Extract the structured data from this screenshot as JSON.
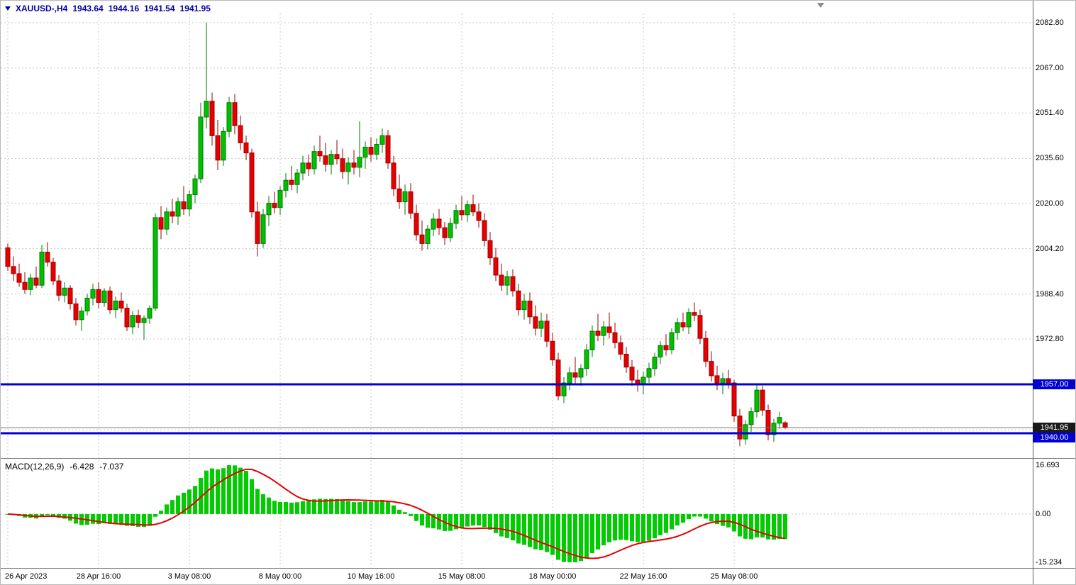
{
  "title": {
    "symbol_period": "XAUUSD-,H4",
    "open": "1943.64",
    "high": "1944.16",
    "low": "1941.54",
    "close": "1941.95"
  },
  "indicator": {
    "name": "MACD(12,26,9)",
    "value_main": "-6.428",
    "value_signal": "-7.037",
    "scale_max": "16.693",
    "scale_zero": "0.00",
    "scale_min": "-15.234"
  },
  "colors": {
    "bull": "#00c000",
    "bull_border": "#007a00",
    "bear": "#e80000",
    "bear_border": "#9c0000",
    "grid": "#c8c8c8",
    "level_line": "#0000d2",
    "bid_line": "#777777",
    "macd_hist": "#00cc00",
    "macd_signal": "#e60000",
    "badge_level_bg": "#0000d2",
    "badge_bid_bg": "#1a1a1a"
  },
  "chart_data": [
    {
      "type": "candlestick",
      "title": "XAUUSD-,H4",
      "symbol": "XAUUSD-",
      "timeframe": "H4",
      "last_ohlc": {
        "open": 1943.64,
        "high": 1944.16,
        "low": 1941.54,
        "close": 1941.95
      },
      "y_axis": {
        "side": "right",
        "grid": [
          {
            "price": 2082.8,
            "label": "2082.80"
          },
          {
            "price": 2067.0,
            "label": "2067.00"
          },
          {
            "price": 2051.4,
            "label": "2051.40"
          },
          {
            "price": 2035.6,
            "label": "2035.60"
          },
          {
            "price": 2020.0,
            "label": "2020.00"
          },
          {
            "price": 2004.2,
            "label": "2004.20"
          },
          {
            "price": 1988.4,
            "label": "1988.40"
          },
          {
            "price": 1972.8,
            "label": "1972.80"
          },
          {
            "price": 1957.0
          },
          {
            "price": 1941.2
          }
        ],
        "badges": [
          {
            "price": 1957.0,
            "label": "1957.00",
            "type": "level",
            "name": "level-1957-badge"
          },
          {
            "price": 1941.95,
            "label": "1941.95",
            "type": "bid",
            "name": "bid-price-badge"
          },
          {
            "price": 1940.0,
            "label": "1940.00",
            "type": "level",
            "name": "level-1940-badge"
          }
        ]
      },
      "x_axis": {
        "ticks": [
          {
            "index": 0,
            "label": "26 Apr 2023"
          },
          {
            "index": 16,
            "label": "28 Apr 16:00"
          },
          {
            "index": 32,
            "label": "3 May 08:00"
          },
          {
            "index": 48,
            "label": "8 May 00:00"
          },
          {
            "index": 64,
            "label": "10 May 16:00"
          },
          {
            "index": 80,
            "label": "15 May 08:00"
          },
          {
            "index": 96,
            "label": "18 May 00:00"
          },
          {
            "index": 112,
            "label": "22 May 16:00"
          },
          {
            "index": 128,
            "label": "25 May 08:00"
          }
        ]
      },
      "horizontal_lines": [
        {
          "price": 1957.0,
          "role": "level",
          "width": 3
        },
        {
          "price": 1940.0,
          "role": "level",
          "width": 3
        },
        {
          "price": 1941.95,
          "role": "bid",
          "width": 1
        }
      ],
      "candles": [
        [
          2004.5,
          2006.0,
          1996.5,
          1998.0
        ],
        [
          1998.0,
          2001.5,
          1993.0,
          1995.5
        ],
        [
          1995.5,
          1999.0,
          1991.0,
          1992.5
        ],
        [
          1992.5,
          1996.0,
          1988.5,
          1990.0
        ],
        [
          1990.0,
          1995.5,
          1988.0,
          1994.0
        ],
        [
          1994.0,
          1998.0,
          1990.5,
          1991.5
        ],
        [
          1991.5,
          2005.5,
          1990.5,
          2003.0
        ],
        [
          2003.0,
          2006.5,
          1998.0,
          1999.5
        ],
        [
          1999.5,
          2001.0,
          1991.5,
          1993.0
        ],
        [
          1993.0,
          1995.0,
          1986.0,
          1988.0
        ],
        [
          1988.0,
          1992.5,
          1985.5,
          1990.5
        ],
        [
          1990.5,
          1991.5,
          1983.0,
          1985.0
        ],
        [
          1985.0,
          1987.0,
          1977.5,
          1979.5
        ],
        [
          1979.5,
          1984.0,
          1975.5,
          1982.5
        ],
        [
          1982.5,
          1988.5,
          1981.0,
          1987.0
        ],
        [
          1987.0,
          1992.0,
          1984.5,
          1990.0
        ],
        [
          1990.0,
          1992.5,
          1983.5,
          1985.5
        ],
        [
          1985.5,
          1990.5,
          1984.0,
          1989.5
        ],
        [
          1989.5,
          1991.0,
          1981.5,
          1983.0
        ],
        [
          1983.0,
          1987.5,
          1980.0,
          1986.0
        ],
        [
          1986.0,
          1989.0,
          1982.0,
          1983.5
        ],
        [
          1983.5,
          1985.0,
          1975.5,
          1977.0
        ],
        [
          1977.0,
          1982.5,
          1974.5,
          1981.0
        ],
        [
          1981.0,
          1983.0,
          1976.5,
          1978.5
        ],
        [
          1978.5,
          1981.0,
          1972.5,
          1980.0
        ],
        [
          1980.0,
          1984.5,
          1978.0,
          1983.5
        ],
        [
          1983.5,
          2016.5,
          1982.5,
          2015.0
        ],
        [
          2015.0,
          2019.0,
          2007.5,
          2011.0
        ],
        [
          2011.0,
          2018.5,
          2009.0,
          2017.0
        ],
        [
          2017.0,
          2021.5,
          2013.0,
          2015.5
        ],
        [
          2015.5,
          2022.0,
          2012.5,
          2020.5
        ],
        [
          2020.5,
          2026.0,
          2016.0,
          2018.0
        ],
        [
          2018.0,
          2024.5,
          2015.5,
          2023.0
        ],
        [
          2023.0,
          2030.0,
          2020.0,
          2028.5
        ],
        [
          2028.5,
          2055.0,
          2027.0,
          2050.0
        ],
        [
          2050.0,
          2082.8,
          2046.0,
          2055.5
        ],
        [
          2055.5,
          2058.5,
          2040.0,
          2043.5
        ],
        [
          2043.5,
          2049.0,
          2031.5,
          2035.0
        ],
        [
          2035.0,
          2046.5,
          2033.0,
          2045.0
        ],
        [
          2045.0,
          2057.0,
          2043.0,
          2055.0
        ],
        [
          2055.0,
          2058.0,
          2044.0,
          2047.0
        ],
        [
          2047.0,
          2050.5,
          2038.5,
          2041.0
        ],
        [
          2041.0,
          2043.5,
          2035.0,
          2037.5
        ],
        [
          2037.5,
          2039.0,
          2015.0,
          2017.0
        ],
        [
          2017.0,
          2020.5,
          2001.5,
          2006.0
        ],
        [
          2006.0,
          2018.0,
          2004.5,
          2016.0
        ],
        [
          2016.0,
          2022.5,
          2012.0,
          2020.0
        ],
        [
          2020.0,
          2024.0,
          2016.5,
          2018.5
        ],
        [
          2018.5,
          2026.0,
          2016.0,
          2024.5
        ],
        [
          2024.5,
          2030.5,
          2022.0,
          2028.0
        ],
        [
          2028.0,
          2033.0,
          2024.5,
          2026.5
        ],
        [
          2026.5,
          2032.0,
          2023.5,
          2030.5
        ],
        [
          2030.5,
          2036.5,
          2028.0,
          2034.0
        ],
        [
          2034.0,
          2037.0,
          2029.5,
          2032.0
        ],
        [
          2032.0,
          2040.0,
          2030.0,
          2038.0
        ],
        [
          2038.0,
          2043.5,
          2034.5,
          2036.5
        ],
        [
          2036.5,
          2041.0,
          2031.0,
          2033.5
        ],
        [
          2033.5,
          2038.5,
          2030.0,
          2037.0
        ],
        [
          2037.0,
          2042.0,
          2033.5,
          2035.5
        ],
        [
          2035.5,
          2039.0,
          2028.5,
          2031.0
        ],
        [
          2031.0,
          2036.0,
          2026.5,
          2034.0
        ],
        [
          2034.0,
          2038.5,
          2030.0,
          2032.5
        ],
        [
          2032.5,
          2048.5,
          2029.0,
          2036.0
        ],
        [
          2036.0,
          2041.5,
          2032.0,
          2039.5
        ],
        [
          2039.5,
          2043.0,
          2034.5,
          2037.0
        ],
        [
          2037.0,
          2042.5,
          2035.0,
          2040.5
        ],
        [
          2040.5,
          2046.0,
          2037.5,
          2043.5
        ],
        [
          2043.5,
          2045.5,
          2032.0,
          2034.0
        ],
        [
          2034.0,
          2036.5,
          2022.5,
          2025.0
        ],
        [
          2025.0,
          2030.0,
          2018.0,
          2020.5
        ],
        [
          2020.5,
          2026.5,
          2016.0,
          2024.0
        ],
        [
          2024.0,
          2027.0,
          2014.5,
          2016.5
        ],
        [
          2016.5,
          2019.5,
          2007.0,
          2009.0
        ],
        [
          2009.0,
          2014.0,
          2003.5,
          2006.0
        ],
        [
          2006.0,
          2012.5,
          2004.0,
          2011.0
        ],
        [
          2011.0,
          2016.5,
          2008.5,
          2014.5
        ],
        [
          2014.5,
          2018.0,
          2009.0,
          2011.5
        ],
        [
          2011.5,
          2013.5,
          2005.5,
          2008.0
        ],
        [
          2008.0,
          2015.0,
          2006.5,
          2013.0
        ],
        [
          2013.0,
          2019.5,
          2011.0,
          2017.5
        ],
        [
          2017.5,
          2022.5,
          2014.0,
          2016.0
        ],
        [
          2016.0,
          2021.0,
          2013.5,
          2019.5
        ],
        [
          2019.5,
          2023.0,
          2015.5,
          2017.0
        ],
        [
          2017.0,
          2020.0,
          2011.5,
          2014.0
        ],
        [
          2014.0,
          2016.5,
          2005.0,
          2007.0
        ],
        [
          2007.0,
          2010.0,
          1998.5,
          2001.0
        ],
        [
          2001.0,
          2004.5,
          1993.0,
          1995.0
        ],
        [
          1995.0,
          1999.0,
          1989.5,
          1991.5
        ],
        [
          1991.5,
          1996.5,
          1988.0,
          1994.5
        ],
        [
          1994.5,
          1997.0,
          1987.5,
          1989.5
        ],
        [
          1989.5,
          1992.0,
          1981.0,
          1983.0
        ],
        [
          1983.0,
          1988.5,
          1979.5,
          1986.0
        ],
        [
          1986.0,
          1989.0,
          1978.0,
          1980.5
        ],
        [
          1980.5,
          1984.5,
          1974.0,
          1976.5
        ],
        [
          1976.5,
          1982.0,
          1973.5,
          1979.0
        ],
        [
          1979.0,
          1981.5,
          1970.0,
          1972.0
        ],
        [
          1972.0,
          1975.0,
          1963.5,
          1965.5
        ],
        [
          1965.5,
          1968.0,
          1951.5,
          1953.0
        ],
        [
          1953.0,
          1959.5,
          1950.5,
          1957.5
        ],
        [
          1957.5,
          1963.0,
          1955.0,
          1961.0
        ],
        [
          1961.0,
          1966.5,
          1957.0,
          1959.5
        ],
        [
          1959.5,
          1964.0,
          1956.5,
          1962.5
        ],
        [
          1962.5,
          1971.0,
          1960.0,
          1969.0
        ],
        [
          1969.0,
          1977.5,
          1966.5,
          1975.5
        ],
        [
          1975.5,
          1981.5,
          1972.0,
          1974.0
        ],
        [
          1974.0,
          1979.0,
          1970.5,
          1977.0
        ],
        [
          1977.0,
          1982.0,
          1973.0,
          1975.0
        ],
        [
          1975.0,
          1978.5,
          1969.5,
          1971.5
        ],
        [
          1971.5,
          1974.0,
          1965.5,
          1967.5
        ],
        [
          1967.5,
          1970.0,
          1961.0,
          1963.0
        ],
        [
          1963.0,
          1965.5,
          1956.5,
          1958.5
        ],
        [
          1958.5,
          1962.0,
          1954.5,
          1957.0
        ],
        [
          1957.0,
          1961.5,
          1953.5,
          1959.5
        ],
        [
          1959.5,
          1964.5,
          1957.5,
          1962.5
        ],
        [
          1962.5,
          1968.0,
          1960.0,
          1966.5
        ],
        [
          1966.5,
          1972.0,
          1964.0,
          1970.5
        ],
        [
          1970.5,
          1974.5,
          1967.0,
          1969.0
        ],
        [
          1969.0,
          1976.5,
          1967.5,
          1975.0
        ],
        [
          1975.0,
          1980.0,
          1972.5,
          1978.5
        ],
        [
          1978.5,
          1982.0,
          1975.5,
          1977.0
        ],
        [
          1977.0,
          1983.5,
          1974.5,
          1982.0
        ],
        [
          1982.0,
          1985.5,
          1979.0,
          1981.0
        ],
        [
          1981.0,
          1983.0,
          1971.0,
          1973.0
        ],
        [
          1973.0,
          1975.5,
          1963.0,
          1965.0
        ],
        [
          1965.0,
          1968.5,
          1958.0,
          1960.0
        ],
        [
          1960.0,
          1963.5,
          1955.0,
          1957.5
        ],
        [
          1957.5,
          1961.0,
          1953.5,
          1959.0
        ],
        [
          1959.0,
          1962.0,
          1955.5,
          1957.5
        ],
        [
          1957.5,
          1958.5,
          1944.0,
          1946.0
        ],
        [
          1946.0,
          1948.5,
          1935.5,
          1938.0
        ],
        [
          1938.0,
          1944.5,
          1936.0,
          1943.0
        ],
        [
          1943.0,
          1949.0,
          1940.5,
          1947.5
        ],
        [
          1947.5,
          1957.0,
          1945.5,
          1955.0
        ],
        [
          1955.0,
          1956.5,
          1946.0,
          1948.0
        ],
        [
          1948.0,
          1950.0,
          1937.5,
          1939.5
        ],
        [
          1939.5,
          1945.0,
          1937.0,
          1943.5
        ],
        [
          1943.5,
          1947.5,
          1941.5,
          1945.5
        ],
        [
          1943.64,
          1944.16,
          1941.54,
          1941.95
        ]
      ]
    },
    {
      "type": "macd",
      "params": {
        "fast": 12,
        "slow": 26,
        "signal": 9
      },
      "current": {
        "macd": -6.428,
        "signal": -7.037
      },
      "scale": {
        "max": 16.693,
        "zero": 0.0,
        "min": -15.234
      },
      "note": "green histogram (MACD line) and red signal line computed from candle closes above"
    }
  ]
}
